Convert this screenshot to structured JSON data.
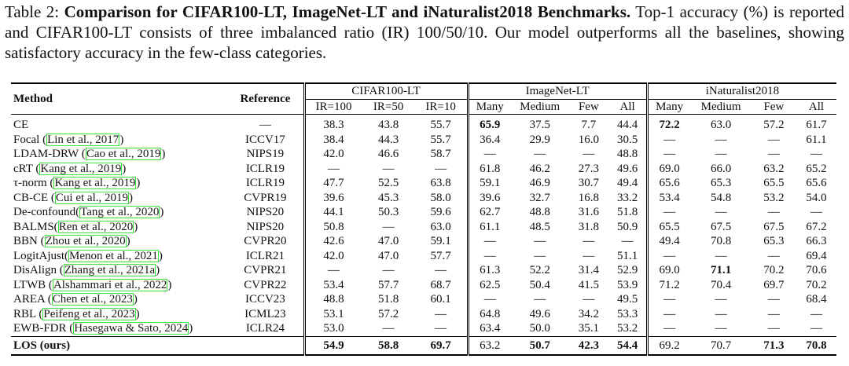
{
  "caption": {
    "label": "Table 2:",
    "title": "Comparison for CIFAR100-LT, ImageNet-LT and iNaturalist2018 Benchmarks.",
    "body": "Top-1 accuracy (%) is reported and CIFAR100-LT consists of three imbalanced ratio (IR) 100/50/10. Our model outperforms all the baselines, showing satisfactory accuracy in the few-class categories."
  },
  "header": {
    "method": "Method",
    "reference": "Reference",
    "groups": [
      "CIFAR100-LT",
      "ImageNet-LT",
      "iNaturalist2018"
    ],
    "cifar_cols": [
      "IR=100",
      "IR=50",
      "IR=10"
    ],
    "imagenet_cols": [
      "Many",
      "Medium",
      "Few",
      "All"
    ],
    "inat_cols": [
      "Many",
      "Medium",
      "Few",
      "All"
    ]
  },
  "rows": [
    {
      "method": "CE",
      "cite": "",
      "ref": "—",
      "cifar": [
        "38.3",
        "43.8",
        "55.7"
      ],
      "imagenet": [
        "65.9",
        "37.5",
        "7.7",
        "44.4"
      ],
      "inat": [
        "72.2",
        "63.0",
        "57.2",
        "61.7"
      ],
      "bold": [
        false,
        false,
        false,
        true,
        false,
        false,
        false,
        true,
        false,
        false,
        false
      ]
    },
    {
      "method": "Focal (",
      "cite": "Lin et al., 2017",
      "tail": ")",
      "ref": "ICCV17",
      "cifar": [
        "38.4",
        "44.3",
        "55.7"
      ],
      "imagenet": [
        "36.4",
        "29.9",
        "16.0",
        "30.5"
      ],
      "inat": [
        "—",
        "—",
        "—",
        "61.1"
      ]
    },
    {
      "method": "LDAM-DRW (",
      "cite": "Cao et al., 2019",
      "tail": ")",
      "ref": "NIPS19",
      "cifar": [
        "42.0",
        "46.6",
        "58.7"
      ],
      "imagenet": [
        "—",
        "—",
        "—",
        "48.8"
      ],
      "inat": [
        "—",
        "—",
        "—",
        "—"
      ]
    },
    {
      "method": "cRT (",
      "cite": "Kang et al., 2019",
      "tail": ")",
      "ref": "ICLR19",
      "cifar": [
        "—",
        "—",
        "—"
      ],
      "imagenet": [
        "61.8",
        "46.2",
        "27.3",
        "49.6"
      ],
      "inat": [
        "69.0",
        "66.0",
        "63.2",
        "65.2"
      ]
    },
    {
      "method": "τ-norm (",
      "cite": "Kang et al., 2019",
      "tail": ")",
      "ref": "ICLR19",
      "cifar": [
        "47.7",
        "52.5",
        "63.8"
      ],
      "imagenet": [
        "59.1",
        "46.9",
        "30.7",
        "49.4"
      ],
      "inat": [
        "65.6",
        "65.3",
        "65.5",
        "65.6"
      ]
    },
    {
      "method": "CB-CE (",
      "cite": "Cui et al., 2019",
      "tail": ")",
      "ref": "CVPR19",
      "cifar": [
        "39.6",
        "45.3",
        "58.0"
      ],
      "imagenet": [
        "39.6",
        "32.7",
        "16.8",
        "33.2"
      ],
      "inat": [
        "53.4",
        "54.8",
        "53.2",
        "54.0"
      ]
    },
    {
      "method": "De-confound(",
      "cite": "Tang et al., 2020",
      "tail": ")",
      "ref": "NIPS20",
      "cifar": [
        "44.1",
        "50.3",
        "59.6"
      ],
      "imagenet": [
        "62.7",
        "48.8",
        "31.6",
        "51.8"
      ],
      "inat": [
        "—",
        "—",
        "—",
        "—"
      ]
    },
    {
      "method": "BALMS(",
      "cite": "Ren et al., 2020",
      "tail": ")",
      "ref": "NIPS20",
      "cifar": [
        "50.8",
        "—",
        "63.0"
      ],
      "imagenet": [
        "61.1",
        "48.5",
        "31.8",
        "50.9"
      ],
      "inat": [
        "65.5",
        "67.5",
        "67.5",
        "67.2"
      ]
    },
    {
      "method": "BBN (",
      "cite": "Zhou et al., 2020",
      "tail": ")",
      "ref": "CVPR20",
      "cifar": [
        "42.6",
        "47.0",
        "59.1"
      ],
      "imagenet": [
        "—",
        "—",
        "—",
        "—"
      ],
      "inat": [
        "49.4",
        "70.8",
        "65.3",
        "66.3"
      ]
    },
    {
      "method": "LogitAjust(",
      "cite": "Menon et al., 2021",
      "tail": ")",
      "ref": "ICLR21",
      "cifar": [
        "42.0",
        "47.0",
        "57.7"
      ],
      "imagenet": [
        "—",
        "—",
        "—",
        "51.1"
      ],
      "inat": [
        "—",
        "—",
        "—",
        "69.4"
      ]
    },
    {
      "method": "DisAlign (",
      "cite": "Zhang et al., 2021a",
      "tail": ")",
      "ref": "CVPR21",
      "cifar": [
        "—",
        "—",
        "—"
      ],
      "imagenet": [
        "61.3",
        "52.2",
        "31.4",
        "52.9"
      ],
      "inat": [
        "69.0",
        "71.1",
        "70.2",
        "70.6"
      ],
      "bold": [
        false,
        false,
        false,
        false,
        false,
        false,
        false,
        false,
        true,
        false,
        false
      ]
    },
    {
      "method": "LTWB (",
      "cite": "Alshammari et al., 2022",
      "tail": ")",
      "ref": "CVPR22",
      "cifar": [
        "53.4",
        "57.7",
        "68.7"
      ],
      "imagenet": [
        "62.5",
        "50.4",
        "41.5",
        "53.9"
      ],
      "inat": [
        "71.2",
        "70.4",
        "69.7",
        "70.2"
      ]
    },
    {
      "method": "AREA (",
      "cite": "Chen et al., 2023",
      "tail": ")",
      "ref": "ICCV23",
      "cifar": [
        "48.8",
        "51.8",
        "60.1"
      ],
      "imagenet": [
        "—",
        "—",
        "—",
        "49.5"
      ],
      "inat": [
        "—",
        "—",
        "—",
        "68.4"
      ]
    },
    {
      "method": "RBL (",
      "cite": "Peifeng et al., 2023",
      "tail": ")",
      "ref": "ICML23",
      "cifar": [
        "53.1",
        "57.2",
        "—"
      ],
      "imagenet": [
        "64.8",
        "49.6",
        "34.2",
        "53.3"
      ],
      "inat": [
        "—",
        "—",
        "—",
        "—"
      ]
    },
    {
      "method": "EWB-FDR (",
      "cite": "Hasegawa & Sato, 2024",
      "tail": ")",
      "ref": "ICLR24",
      "cifar": [
        "53.0",
        "—",
        "—"
      ],
      "imagenet": [
        "63.4",
        "50.0",
        "35.1",
        "53.2"
      ],
      "inat": [
        "—",
        "—",
        "—",
        "—"
      ]
    }
  ],
  "ours": {
    "method": "LOS (ours)",
    "ref": "",
    "cifar": [
      "54.9",
      "58.8",
      "69.7"
    ],
    "imagenet": [
      "63.2",
      "50.7",
      "42.3",
      "54.4"
    ],
    "inat": [
      "69.2",
      "70.7",
      "71.3",
      "70.8"
    ],
    "bold": [
      true,
      true,
      true,
      false,
      true,
      true,
      true,
      false,
      false,
      true,
      true
    ]
  }
}
